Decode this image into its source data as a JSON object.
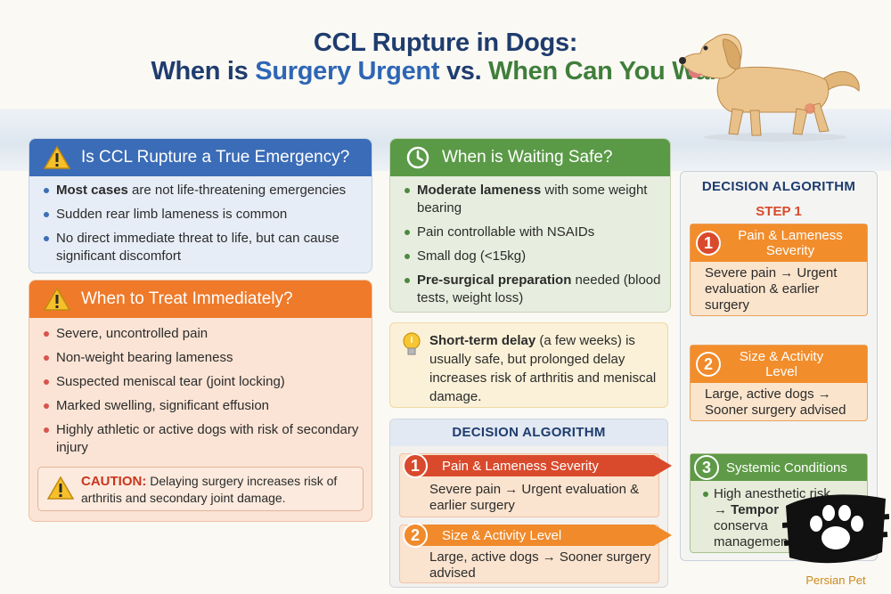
{
  "title": {
    "line1": "CCL Rupture in Dogs:",
    "line2_part1": "When is ",
    "line2_part2": "Surgery Urgent",
    "line2_part3": " vs. ",
    "line2_part4": "When Can You Wait?"
  },
  "emergency": {
    "heading": "Is CCL Rupture a True Emergency?",
    "items": [
      {
        "bold": "Most cases",
        "text": " are not life-threatening emergencies"
      },
      {
        "bold": "",
        "text": "Sudden rear limb lameness is common"
      },
      {
        "bold": "",
        "text": "No direct immediate threat to life, but can cause significant discomfort"
      }
    ]
  },
  "immediate": {
    "heading": "When to Treat Immediately?",
    "items": [
      "Severe, uncontrolled pain",
      "Non-weight bearing lameness",
      "Suspected meniscal tear (joint locking)",
      "Marked swelling, significant effusion",
      "Highly athletic or active dogs with risk of secondary injury"
    ],
    "caution_label": "CAUTION:",
    "caution_text": " Delaying surgery increases risk of arthritis and secondary joint damage."
  },
  "waiting": {
    "heading": "When is Waiting Safe?",
    "items": [
      {
        "bold": "Moderate lameness",
        "text": " with some weight bearing"
      },
      {
        "bold": "",
        "text": "Pain controllable with NSAIDs"
      },
      {
        "bold": "",
        "text": "Small dog (<15kg)"
      },
      {
        "bold": "Pre-surgical preparation",
        "text": " needed (blood tests, weight loss)"
      }
    ]
  },
  "tip": {
    "bold": "Short-term delay",
    "text": " (a few weeks) is usually safe, but prolonged delay increases risk of arthritis and meniscal damage."
  },
  "algo_middle": {
    "title": "DECISION ALGORITHM",
    "steps": [
      {
        "num": "1",
        "label": "Pain & Lameness Severity",
        "body": "Severe pain → Urgent evaluation & earlier surgery"
      },
      {
        "num": "2",
        "label": "Size & Activity Level",
        "body": "Large, active dogs → Sooner surgery advised"
      }
    ]
  },
  "algo_right": {
    "title": "DECISION ALGORITHM",
    "step_label": "STEP 1",
    "steps": [
      {
        "num": "1",
        "label": "Pain & Lameness Severity",
        "body": "Severe pain → Urgent evaluation & earlier surgery"
      },
      {
        "num": "2",
        "label": "Size & Activity Level",
        "body": "Large, active dogs → Sooner surgery advised"
      },
      {
        "num": "3",
        "label": "Systemic Conditions",
        "body1": "High anesthetic risk",
        "body2": "→ Tempor",
        "body3": "conserva",
        "body4": "managemen"
      }
    ]
  },
  "watermark": {
    "text": "Persian Pet"
  },
  "colors": {
    "blue_header": "#3b6cb7",
    "orange_header": "#ee7a2a",
    "green_header": "#5a9a47",
    "step_red": "#d94a2c",
    "step_orange": "#f08a2b",
    "arrow_blue": "#5b8fd0"
  }
}
